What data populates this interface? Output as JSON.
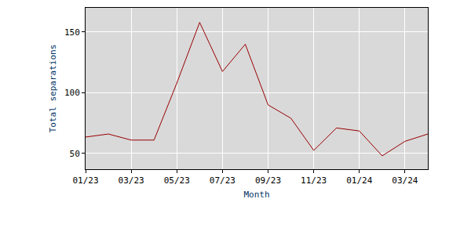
{
  "chart_data": {
    "type": "line",
    "x_label": "Month",
    "y_label": "Total separations",
    "categories": [
      "01/23",
      null,
      "03/23",
      null,
      "05/23",
      null,
      "07/23",
      null,
      "09/23",
      null,
      "11/23",
      null,
      "01/24",
      null,
      "03/24",
      null
    ],
    "values": [
      63.5,
      66,
      61,
      61,
      108,
      158,
      117.5,
      140,
      90,
      79,
      52.5,
      71,
      68.5,
      48,
      60,
      66
    ],
    "color": "#990000",
    "ylim": [
      37,
      170
    ],
    "yticks": [
      50,
      100,
      150
    ],
    "grid": true
  }
}
